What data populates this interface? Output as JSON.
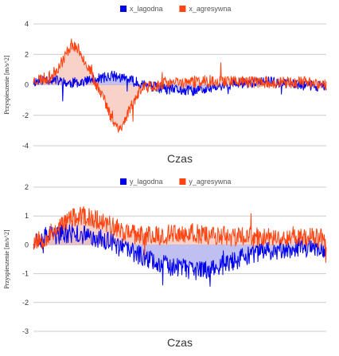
{
  "chart_data": [
    {
      "type": "area",
      "xlabel": "Czas",
      "ylabel": "Przyspieszenie [m/s^2]",
      "yticks": [
        -4,
        -2,
        0,
        2,
        4
      ],
      "ylim": [
        -4,
        4
      ],
      "grid": true,
      "legend": "top-center",
      "series": [
        {
          "name": "x_lagodna",
          "color": "#0000ee",
          "fill": "#aaaaee",
          "profile": [
            [
              0,
              0.2
            ],
            [
              0.05,
              0.4
            ],
            [
              0.12,
              0.1
            ],
            [
              0.2,
              0.3
            ],
            [
              0.27,
              0.6
            ],
            [
              0.33,
              0.3
            ],
            [
              0.38,
              0.0
            ],
            [
              0.45,
              -0.3
            ],
            [
              0.55,
              -0.4
            ],
            [
              0.62,
              -0.2
            ],
            [
              0.7,
              0.1
            ],
            [
              0.8,
              0.2
            ],
            [
              0.9,
              0.0
            ],
            [
              1,
              -0.1
            ]
          ],
          "noise": 0.35,
          "seed": 11
        },
        {
          "name": "x_agresywna",
          "color": "#ff4411",
          "fill": "#f5c2b6",
          "profile": [
            [
              0,
              0.3
            ],
            [
              0.06,
              0.5
            ],
            [
              0.1,
              1.6
            ],
            [
              0.13,
              2.7
            ],
            [
              0.16,
              2.2
            ],
            [
              0.2,
              0.6
            ],
            [
              0.24,
              -0.9
            ],
            [
              0.27,
              -2.4
            ],
            [
              0.3,
              -2.9
            ],
            [
              0.33,
              -1.5
            ],
            [
              0.37,
              -0.2
            ],
            [
              0.45,
              0.1
            ],
            [
              0.55,
              0.2
            ],
            [
              0.65,
              0.3
            ],
            [
              0.75,
              0.2
            ],
            [
              0.85,
              0.1
            ],
            [
              0.92,
              0.2
            ],
            [
              1,
              0.0
            ]
          ],
          "noise": 0.4,
          "seed": 23
        }
      ]
    },
    {
      "type": "area",
      "xlabel": "Czas",
      "ylabel": "Przyspieszenie [m/s^2]",
      "yticks": [
        -3,
        -2,
        -1,
        0,
        1,
        2
      ],
      "ylim": [
        -3,
        2
      ],
      "grid": true,
      "legend": "top-center",
      "series": [
        {
          "name": "y_lagodna",
          "color": "#0000ee",
          "fill": "#aaaaee",
          "profile": [
            [
              0,
              0.2
            ],
            [
              0.05,
              0.3
            ],
            [
              0.12,
              0.4
            ],
            [
              0.2,
              0.3
            ],
            [
              0.26,
              0.1
            ],
            [
              0.3,
              -0.1
            ],
            [
              0.35,
              -0.3
            ],
            [
              0.45,
              -0.7
            ],
            [
              0.55,
              -0.9
            ],
            [
              0.62,
              -0.8
            ],
            [
              0.7,
              -0.5
            ],
            [
              0.8,
              -0.2
            ],
            [
              0.9,
              -0.1
            ],
            [
              1,
              -0.1
            ]
          ],
          "noise": 0.35,
          "seed": 37
        },
        {
          "name": "y_agresywna",
          "color": "#ff4411",
          "fill": "#f5c2b6",
          "profile": [
            [
              0,
              0.1
            ],
            [
              0.05,
              0.3
            ],
            [
              0.12,
              0.9
            ],
            [
              0.18,
              1.0
            ],
            [
              0.24,
              0.8
            ],
            [
              0.3,
              0.5
            ],
            [
              0.36,
              0.3
            ],
            [
              0.45,
              0.35
            ],
            [
              0.55,
              0.4
            ],
            [
              0.65,
              0.3
            ],
            [
              0.75,
              0.25
            ],
            [
              0.85,
              0.3
            ],
            [
              0.92,
              0.3
            ],
            [
              1,
              0.2
            ]
          ],
          "noise": 0.35,
          "seed": 53
        }
      ]
    }
  ]
}
